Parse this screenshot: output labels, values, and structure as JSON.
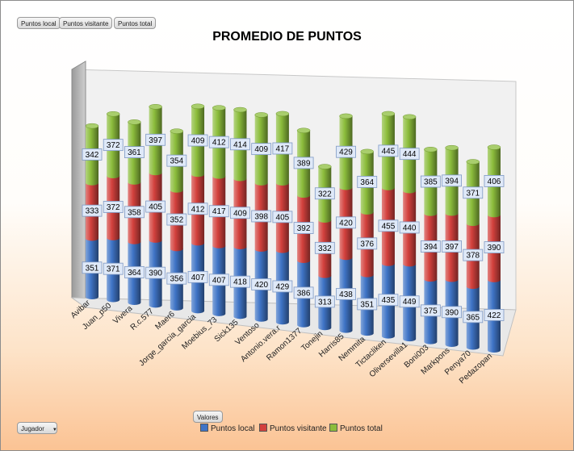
{
  "field_buttons": [
    "Puntos local",
    "Puntos visitante",
    "Puntos total"
  ],
  "values_button": "Valores",
  "filter_button": {
    "label": "Jugador",
    "arrow": "▼"
  },
  "colors": {
    "local": "#3f74c6",
    "visitante": "#d3413d",
    "total": "#8cbd3c"
  },
  "chart_data": {
    "type": "bar",
    "stacked": true,
    "three_d": true,
    "title": "PROMEDIO DE PUNTOS",
    "xlabel": "",
    "ylabel": "",
    "legend_position": "bottom",
    "categories": [
      "Avibar",
      "Juan_p50",
      "Vivera",
      "R.c.577",
      "Maer6",
      "Jorge_garcia_garcia",
      "Moebius_73",
      "Sick135",
      "Ventoso",
      "Antonio.vera.r",
      "Ramon1377",
      "Tonejin",
      "Harris85",
      "Nemmita",
      "Tictacliken",
      "Oliversevilla1",
      "Boni003",
      "Markpons",
      "Penya70",
      "Pedazopan"
    ],
    "series": [
      {
        "name": "Puntos local",
        "values": [
          351,
          371,
          364,
          390,
          356,
          407,
          407,
          418,
          420,
          429,
          386,
          313,
          438,
          351,
          435,
          449,
          375,
          390,
          365,
          422
        ]
      },
      {
        "name": "Puntos visitante",
        "values": [
          333,
          372,
          358,
          405,
          352,
          412,
          417,
          409,
          398,
          405,
          392,
          332,
          420,
          376,
          455,
          440,
          394,
          397,
          378,
          390
        ]
      },
      {
        "name": "Puntos total",
        "values": [
          342,
          372,
          361,
          397,
          354,
          409,
          412,
          414,
          409,
          417,
          389,
          322,
          429,
          364,
          445,
          444,
          385,
          394,
          371,
          406
        ]
      }
    ]
  }
}
